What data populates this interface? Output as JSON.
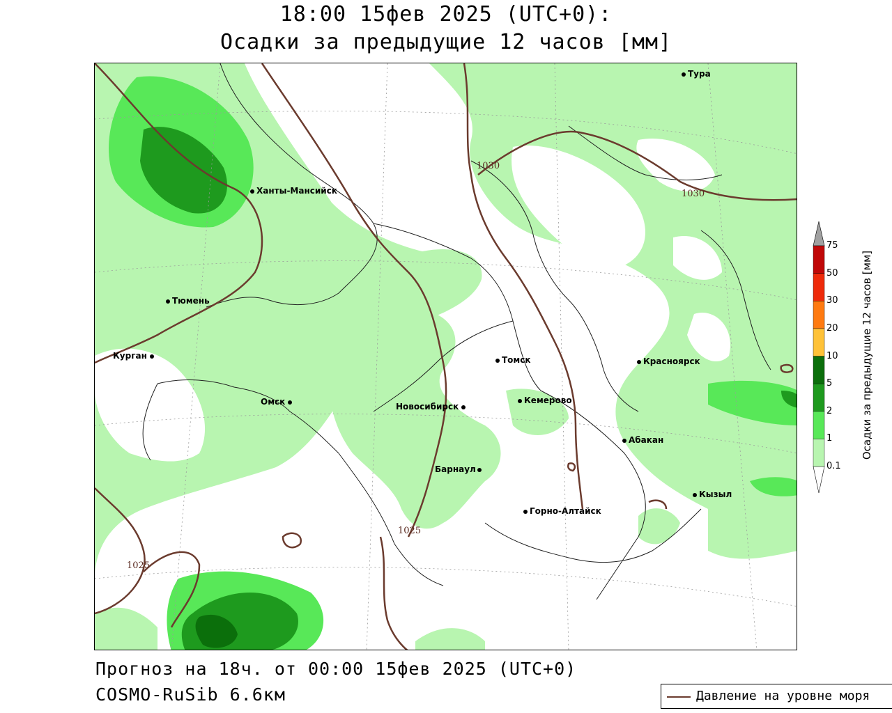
{
  "header": {
    "time_line": "18:00 15фев 2025 (UTC+0):",
    "title_line": "Осадки за предыдущие 12 часов [мм]"
  },
  "footer": {
    "forecast": "Прогноз на 18ч. от 00:00 15фев 2025 (UTC+0)",
    "model": "COSMO-RuSib 6.6км"
  },
  "legend": {
    "pressure_label": "Давление на уровне моря",
    "pressure_color": "#6b3b2e"
  },
  "colorbar": {
    "title": "Осадки за предыдущие 12 часов [мм]",
    "levels": [
      "0.1",
      "1",
      "2",
      "5",
      "10",
      "20",
      "30",
      "50",
      "75"
    ],
    "colors": [
      "#ffffff",
      "#b8f5b0",
      "#58e858",
      "#1e9a1e",
      "#0b6f0b",
      "#ffc238",
      "#ff7a10",
      "#ee2a0a",
      "#c00808",
      "#a0a0a0"
    ]
  },
  "cities": [
    {
      "name": "Тура"
    },
    {
      "name": "Ханты-Мансийск"
    },
    {
      "name": "Тюмень"
    },
    {
      "name": "Курган"
    },
    {
      "name": "Омск"
    },
    {
      "name": "Новосибирск"
    },
    {
      "name": "Томск"
    },
    {
      "name": "Кемерово"
    },
    {
      "name": "Красноярск"
    },
    {
      "name": "Абакан"
    },
    {
      "name": "Барнаул"
    },
    {
      "name": "Горно-Алтайск"
    },
    {
      "name": "Кызыл"
    }
  ],
  "isobars": {
    "labels": [
      "1030",
      "1030",
      "1025",
      "1025"
    ]
  }
}
